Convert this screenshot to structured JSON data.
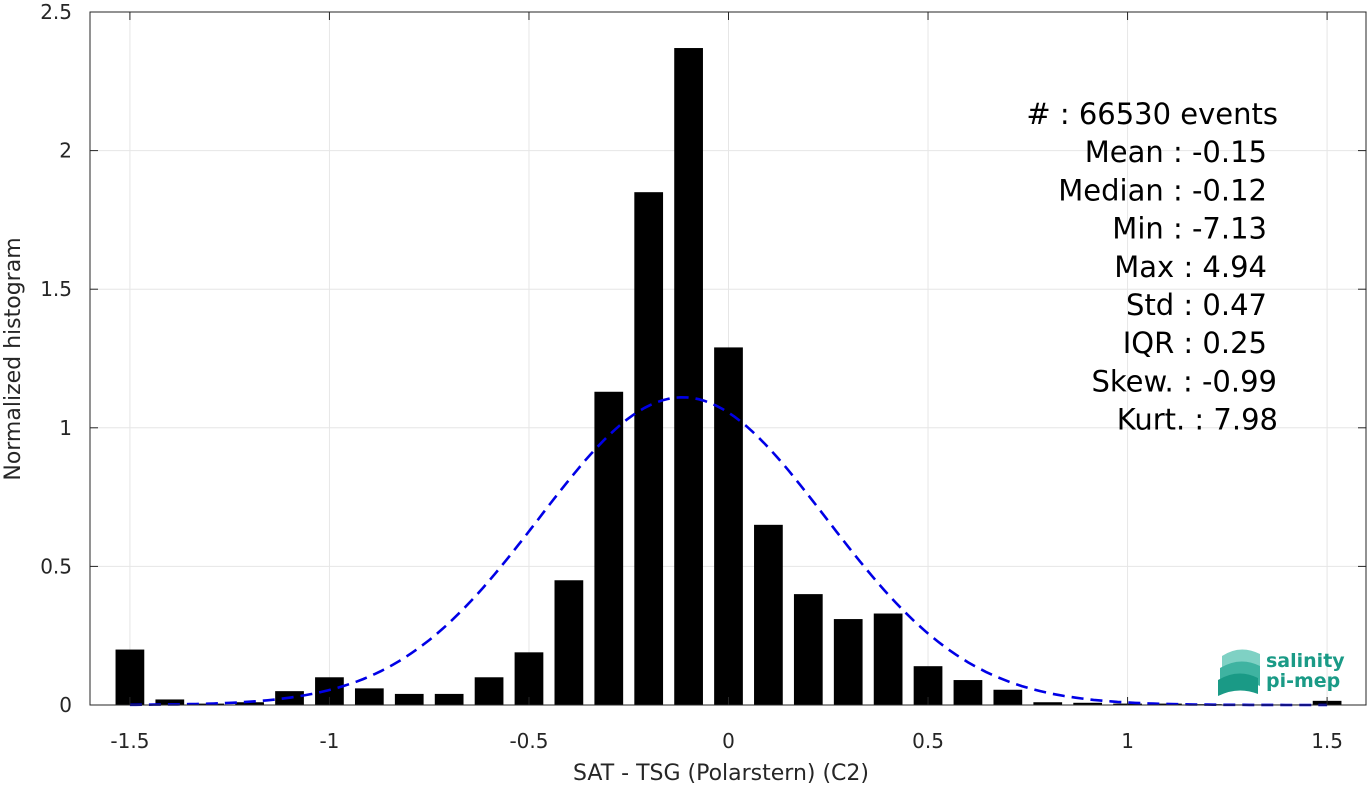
{
  "chart_data": {
    "type": "bar",
    "xlabel": "SAT - TSG (Polarstern) (C2)",
    "ylabel": "Normalized histogram",
    "xlim": [
      -1.6,
      1.6
    ],
    "ylim": [
      0,
      2.5
    ],
    "x_ticks": [
      -1.5,
      -1,
      -0.5,
      0,
      0.5,
      1,
      1.5
    ],
    "x_tick_labels": [
      "-1.5",
      "-1",
      "-0.5",
      "0",
      "0.5",
      "1",
      "1.5"
    ],
    "y_ticks": [
      0,
      0.5,
      1,
      1.5,
      2,
      2.5
    ],
    "y_tick_labels": [
      "0",
      "0.5",
      "1",
      "1.5",
      "2",
      "2.5"
    ],
    "grid": true,
    "bar_color": "#000000",
    "bars": {
      "x": [
        -1.5,
        -1.4,
        -1.3,
        -1.2,
        -1.1,
        -1.0,
        -0.9,
        -0.8,
        -0.7,
        -0.6,
        -0.5,
        -0.4,
        -0.3,
        -0.2,
        -0.1,
        0.0,
        0.1,
        0.2,
        0.3,
        0.4,
        0.5,
        0.6,
        0.7,
        0.8,
        0.9,
        1.0,
        1.1,
        1.2,
        1.3,
        1.4,
        1.5
      ],
      "values": [
        0.2,
        0.02,
        0.005,
        0.01,
        0.05,
        0.1,
        0.06,
        0.04,
        0.04,
        0.1,
        0.19,
        0.45,
        1.13,
        1.85,
        2.37,
        1.29,
        0.65,
        0.4,
        0.31,
        0.33,
        0.14,
        0.09,
        0.055,
        0.01,
        0.008,
        0.005,
        0.005,
        0.003,
        0.002,
        0.002,
        0.015
      ]
    },
    "fit_curve": {
      "type": "normal",
      "mean": -0.115,
      "std": 0.36,
      "peak": 1.11,
      "color": "#0000e6",
      "style": "dashed",
      "x_range": [
        -1.5,
        1.5
      ]
    },
    "annotations": [
      "#  : 66530 events",
      "Mean : -0.15",
      "Median : -0.12",
      "Min : -7.13",
      "Max : 4.94",
      "Std : 0.47",
      "IQR : 0.25",
      "Skew. : -0.99",
      "Kurt. : 7.98"
    ]
  },
  "logo": {
    "line1": "salinity",
    "line2": "pi-mep",
    "color": "#1a9a86"
  }
}
